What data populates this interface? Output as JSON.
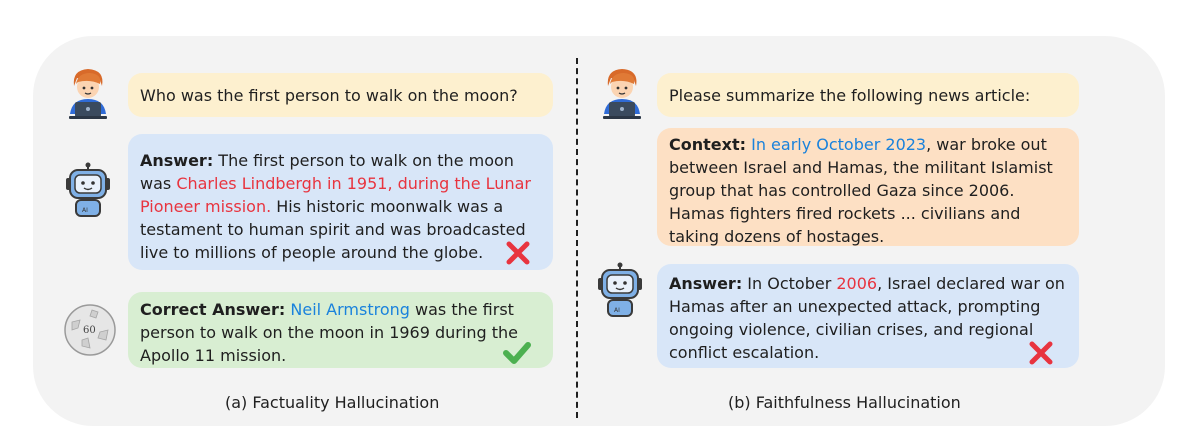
{
  "left": {
    "question": "Who was the first person to walk on the moon?",
    "answer": {
      "label": "Answer:",
      "text1": " The first person to walk on the moon was ",
      "highlight": "Charles Lindbergh in 1951, during the Lunar Pioneer mission.",
      "text2": " His historic moonwalk was a testament to human spirit and was broadcasted live to millions of people around the globe."
    },
    "correct": {
      "label": "Correct Answer:",
      "highlight": "Neil Armstrong",
      "text": " was the first person to walk on the moon in 1969 during the Apollo 11 mission."
    },
    "wiki_badge": "60",
    "caption": "(a) Factuality Hallucination"
  },
  "right": {
    "question": "Please summarize the following news article:",
    "context": {
      "label": "Context:",
      "highlight": "In early October 2023",
      "text": ", war broke out between Israel and Hamas, the militant Islamist group that has controlled Gaza since 2006. Hamas fighters fired rockets  ... civilians and taking dozens of hostages."
    },
    "answer": {
      "label": "Answer:",
      "text1": " In October ",
      "highlight": "2006",
      "text2": ", Israel declared war on Hamas after an unexpected attack, prompting ongoing violence, civilian crises, and regional conflict escalation."
    },
    "caption": "(b) Faithfulness Hallucination"
  },
  "icons": {
    "user": "user-laptop-icon",
    "robot": "ai-robot-icon",
    "wiki": "wikipedia-globe-icon",
    "wrong": "red-cross-icon",
    "right": "green-check-icon"
  }
}
